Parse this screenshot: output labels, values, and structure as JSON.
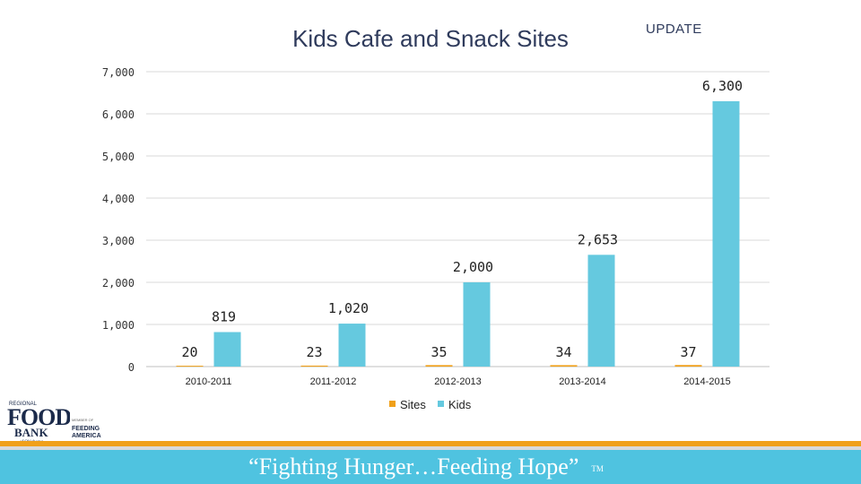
{
  "header": {
    "title": "Kids Cafe and Snack Sites",
    "update": "UPDATE"
  },
  "chart_data": {
    "type": "bar",
    "categories": [
      "2010-2011",
      "2011-2012",
      "2012-2013",
      "2013-2014",
      "2014-2015"
    ],
    "series": [
      {
        "name": "Sites",
        "values": [
          20,
          23,
          35,
          34,
          37
        ],
        "labels": [
          "20",
          "23",
          "35",
          "34",
          "37"
        ],
        "color": "#f0a01a"
      },
      {
        "name": "Kids",
        "values": [
          819,
          1020,
          2000,
          2653,
          6300
        ],
        "labels": [
          "819",
          "1,020",
          "2,000",
          "2,653",
          "6,300"
        ],
        "color": "#65c9df"
      }
    ],
    "yticks": [
      "0",
      "1,000",
      "2,000",
      "3,000",
      "4,000",
      "5,000",
      "6,000",
      "7,000"
    ],
    "ytick_values": [
      0,
      1000,
      2000,
      3000,
      4000,
      5000,
      6000,
      7000
    ],
    "ylim": [
      0,
      7000
    ],
    "legend": "bottom",
    "grid": true,
    "title": "Kids Cafe and Snack Sites"
  },
  "footer": {
    "slogan": "“Fighting Hunger…Feeding Hope”",
    "tm": "TM"
  },
  "logos": {
    "food_bank": "FOOD BANK",
    "feeding_america": "FEEDING AMERICA"
  }
}
